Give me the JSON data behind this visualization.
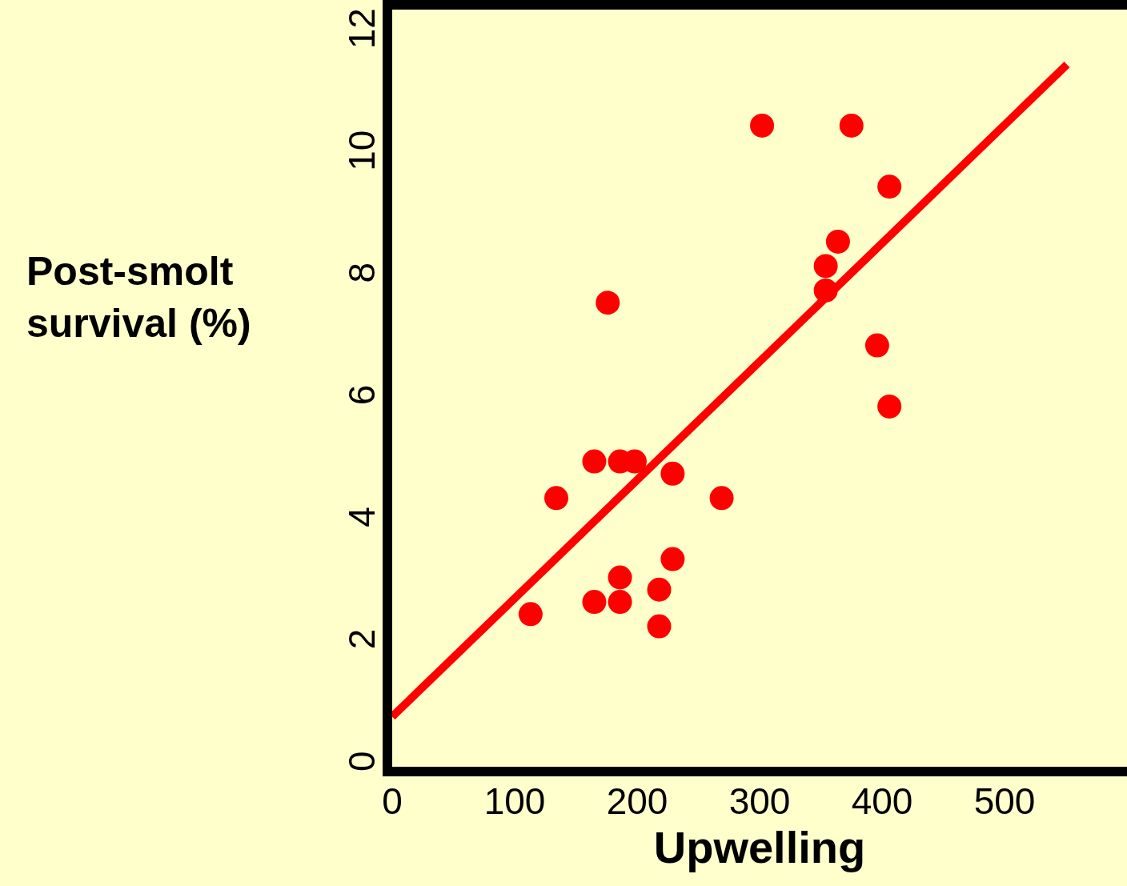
{
  "chart_data": {
    "type": "scatter",
    "xlabel": "Upwelling",
    "ylabel": "Post-smolt\nsurvival (%)",
    "xlim": [
      0,
      600
    ],
    "xticks": [
      0,
      100,
      200,
      300,
      400,
      500
    ],
    "ylim": [
      0,
      12.4
    ],
    "yticks": [
      0,
      2,
      4,
      6,
      8,
      10,
      12
    ],
    "grid": false,
    "marker": "circle",
    "series": [
      {
        "color": "#ff0000",
        "x": [
          113,
          134,
          165,
          165,
          176,
          186,
          186,
          186,
          198,
          218,
          218,
          229,
          229,
          269,
          302,
          354,
          354,
          364,
          375,
          396,
          406,
          406
        ],
        "values": [
          2.5,
          4.4,
          2.7,
          5.0,
          7.6,
          3.1,
          2.7,
          5.0,
          5.0,
          2.3,
          2.9,
          4.8,
          3.4,
          4.4,
          10.5,
          8.2,
          7.8,
          8.6,
          10.5,
          6.9,
          9.5,
          5.9
        ]
      },
      {
        "type": "line",
        "color": "#ff0000",
        "line_style": "solid",
        "marker": "none",
        "x": [
          0,
          551
        ],
        "values": [
          0.82,
          11.5
        ]
      }
    ]
  }
}
